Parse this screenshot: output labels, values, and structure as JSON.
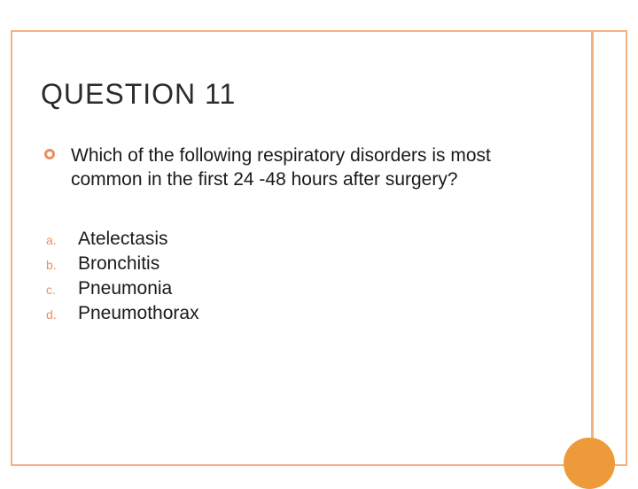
{
  "title": "QUESTION 11",
  "question_text": "Which of the following respiratory disorders is most common in the first 24 -48 hours after surgery?",
  "options": [
    {
      "marker": "a.",
      "text": "Atelectasis"
    },
    {
      "marker": "b.",
      "text": "Bronchitis"
    },
    {
      "marker": "c.",
      "text": "Pneumonia"
    },
    {
      "marker": "d.",
      "text": "Pneumothorax"
    }
  ],
  "colors": {
    "frame_border": "#f4b183",
    "accent": "#f4b183",
    "bullet": "#e99060",
    "option_marker": "#e99060",
    "circle": "#ed9a3a",
    "text": "#1a1a1a",
    "background": "#ffffff"
  },
  "typography": {
    "title_fontsize": 32,
    "body_fontsize": 21,
    "marker_fontsize": 14,
    "font_family": "Arial"
  },
  "layout": {
    "slide_width": 720,
    "slide_height": 540
  }
}
